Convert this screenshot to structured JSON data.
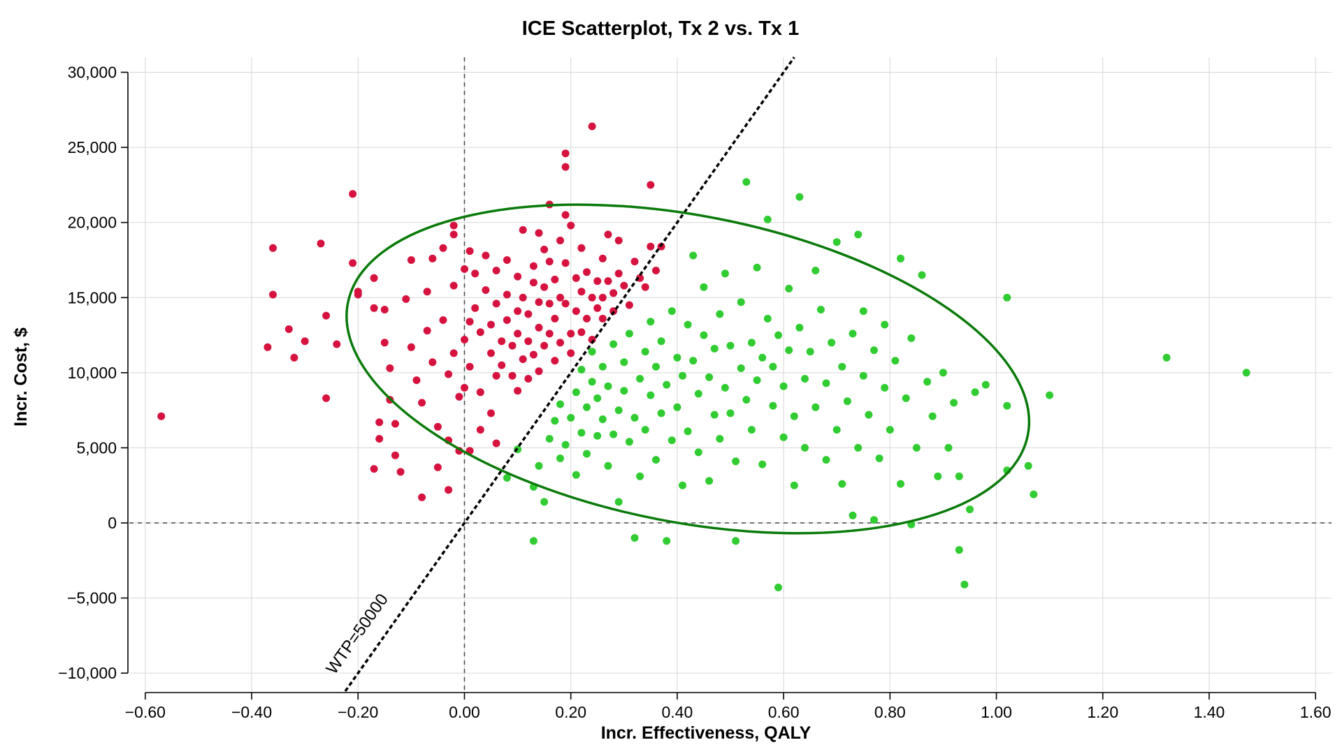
{
  "chart_data": {
    "type": "scatter",
    "title": "ICE Scatterplot, Tx 2 vs. Tx 1",
    "xlabel": "Incr. Effectiveness, QALY",
    "ylabel": "Incr. Cost, $",
    "xlim": [
      -0.63,
      1.63
    ],
    "ylim": [
      -11200,
      31000
    ],
    "x_ticks": [
      -0.6,
      -0.4,
      -0.2,
      0,
      0.2,
      0.4,
      0.6,
      0.8,
      1.0,
      1.2,
      1.4,
      1.6
    ],
    "x_tick_labels": [
      "−0.60",
      "−0.40",
      "−0.20",
      "0.00",
      "0.20",
      "0.40",
      "0.60",
      "0.80",
      "1.00",
      "1.20",
      "1.40",
      "1.60"
    ],
    "y_ticks": [
      -10000,
      -5000,
      0,
      5000,
      10000,
      15000,
      20000,
      25000,
      30000
    ],
    "y_tick_labels": [
      "−10,000",
      "−5,000",
      "0",
      "5,000",
      "10,000",
      "15,000",
      "20,000",
      "25,000",
      "30,000"
    ],
    "grid": true,
    "legend": "none",
    "colors": {
      "not_cost_effective": "#d6133f",
      "cost_effective": "#31cc31",
      "ellipse": "#0a7a0a"
    },
    "wtp": {
      "value": 50000,
      "label": "WTP=50000"
    },
    "ellipse": {
      "center": [
        0.42,
        10250
      ],
      "semi_axes": [
        0.651,
        10200
      ],
      "angle_deg": -11,
      "confidence": 0.95
    },
    "series": [
      {
        "values": [
          [
            -0.57,
            7100
          ],
          [
            -0.36,
            18300
          ],
          [
            -0.36,
            15200
          ],
          [
            -0.37,
            11700
          ],
          [
            -0.33,
            12900
          ],
          [
            -0.32,
            11000
          ],
          [
            -0.3,
            12100
          ],
          [
            -0.27,
            18600
          ],
          [
            -0.26,
            13800
          ],
          [
            -0.26,
            8300
          ],
          [
            -0.24,
            11900
          ],
          [
            -0.21,
            21900
          ],
          [
            -0.21,
            17300
          ],
          [
            -0.2,
            15400
          ],
          [
            -0.2,
            15200
          ],
          [
            -0.17,
            16300
          ],
          [
            -0.17,
            14300
          ],
          [
            -0.16,
            6700
          ],
          [
            -0.16,
            5600
          ],
          [
            -0.17,
            3600
          ],
          [
            -0.15,
            14200
          ],
          [
            -0.15,
            12000
          ],
          [
            -0.14,
            10300
          ],
          [
            -0.14,
            8200
          ],
          [
            -0.13,
            6600
          ],
          [
            -0.13,
            4500
          ],
          [
            -0.12,
            3400
          ],
          [
            -0.11,
            14900
          ],
          [
            -0.1,
            17500
          ],
          [
            -0.1,
            11700
          ],
          [
            -0.09,
            9500
          ],
          [
            -0.08,
            8000
          ],
          [
            -0.08,
            1700
          ],
          [
            -0.07,
            15400
          ],
          [
            -0.07,
            12800
          ],
          [
            -0.06,
            17600
          ],
          [
            -0.06,
            10700
          ],
          [
            -0.05,
            6400
          ],
          [
            -0.05,
            3700
          ],
          [
            -0.04,
            18300
          ],
          [
            -0.04,
            13500
          ],
          [
            -0.03,
            9900
          ],
          [
            -0.03,
            5500
          ],
          [
            -0.03,
            2200
          ],
          [
            -0.02,
            19200
          ],
          [
            -0.02,
            15800
          ],
          [
            -0.02,
            11300
          ],
          [
            -0.01,
            8400
          ],
          [
            -0.01,
            4800
          ],
          [
            -0.02,
            19800
          ],
          [
            0.0,
            16900
          ],
          [
            0.0,
            12200
          ],
          [
            0.0,
            9000
          ],
          [
            0.01,
            18100
          ],
          [
            0.01,
            13400
          ],
          [
            0.01,
            10400
          ],
          [
            0.01,
            4800
          ],
          [
            0.02,
            16600
          ],
          [
            0.02,
            14300
          ],
          [
            0.03,
            12700
          ],
          [
            0.03,
            8700
          ],
          [
            0.03,
            6200
          ],
          [
            0.04,
            17800
          ],
          [
            0.04,
            15500
          ],
          [
            0.05,
            13200
          ],
          [
            0.05,
            11300
          ],
          [
            0.05,
            7300
          ],
          [
            0.06,
            16800
          ],
          [
            0.06,
            14600
          ],
          [
            0.06,
            9800
          ],
          [
            0.06,
            5300
          ],
          [
            0.07,
            12100
          ],
          [
            0.07,
            10500
          ],
          [
            0.08,
            17500
          ],
          [
            0.08,
            15200
          ],
          [
            0.08,
            13500
          ],
          [
            0.09,
            11800
          ],
          [
            0.09,
            9800
          ],
          [
            0.1,
            16400
          ],
          [
            0.1,
            14100
          ],
          [
            0.1,
            12600
          ],
          [
            0.1,
            8800
          ],
          [
            0.11,
            19500
          ],
          [
            0.11,
            15000
          ],
          [
            0.11,
            10900
          ],
          [
            0.12,
            13900
          ],
          [
            0.12,
            12100
          ],
          [
            0.12,
            9600
          ],
          [
            0.13,
            17100
          ],
          [
            0.13,
            16000
          ],
          [
            0.13,
            11200
          ],
          [
            0.14,
            14700
          ],
          [
            0.14,
            13000
          ],
          [
            0.14,
            10100
          ],
          [
            0.15,
            18200
          ],
          [
            0.15,
            15700
          ],
          [
            0.15,
            11800
          ],
          [
            0.16,
            21200
          ],
          [
            0.16,
            17400
          ],
          [
            0.16,
            14600
          ],
          [
            0.16,
            12600
          ],
          [
            0.17,
            16200
          ],
          [
            0.17,
            13600
          ],
          [
            0.17,
            10800
          ],
          [
            0.18,
            18800
          ],
          [
            0.18,
            15000
          ],
          [
            0.18,
            12000
          ],
          [
            0.19,
            24600
          ],
          [
            0.19,
            20500
          ],
          [
            0.19,
            17300
          ],
          [
            0.19,
            14600
          ],
          [
            0.2,
            12600
          ],
          [
            0.2,
            11300
          ],
          [
            0.2,
            19800
          ],
          [
            0.21,
            16300
          ],
          [
            0.21,
            14100
          ],
          [
            0.22,
            18300
          ],
          [
            0.22,
            15400
          ],
          [
            0.22,
            12700
          ],
          [
            0.23,
            16700
          ],
          [
            0.23,
            13600
          ],
          [
            0.24,
            26400
          ],
          [
            0.24,
            15000
          ],
          [
            0.24,
            12200
          ],
          [
            0.25,
            16100
          ],
          [
            0.25,
            14300
          ],
          [
            0.26,
            17600
          ],
          [
            0.26,
            15000
          ],
          [
            0.26,
            13600
          ],
          [
            0.27,
            16100
          ],
          [
            0.27,
            19200
          ],
          [
            0.28,
            15300
          ],
          [
            0.28,
            14100
          ],
          [
            0.29,
            18800
          ],
          [
            0.29,
            16600
          ],
          [
            0.3,
            15800
          ],
          [
            0.31,
            14500
          ],
          [
            0.32,
            17400
          ],
          [
            0.33,
            16300
          ],
          [
            0.34,
            15700
          ],
          [
            0.35,
            18400
          ],
          [
            0.35,
            22500
          ],
          [
            0.36,
            16800
          ],
          [
            0.37,
            18400
          ],
          [
            0.19,
            23700
          ],
          [
            0.14,
            19300
          ]
        ],
        "color": "#d6133f"
      },
      {
        "values": [
          [
            0.08,
            3000
          ],
          [
            0.1,
            4900
          ],
          [
            0.13,
            2400
          ],
          [
            0.13,
            -1200
          ],
          [
            0.14,
            3800
          ],
          [
            0.15,
            1400
          ],
          [
            0.16,
            5600
          ],
          [
            0.17,
            6800
          ],
          [
            0.18,
            4300
          ],
          [
            0.18,
            7900
          ],
          [
            0.19,
            5200
          ],
          [
            0.2,
            7000
          ],
          [
            0.21,
            3200
          ],
          [
            0.21,
            8700
          ],
          [
            0.22,
            6000
          ],
          [
            0.22,
            10200
          ],
          [
            0.23,
            4600
          ],
          [
            0.23,
            7700
          ],
          [
            0.24,
            9400
          ],
          [
            0.24,
            11400
          ],
          [
            0.25,
            5800
          ],
          [
            0.25,
            8300
          ],
          [
            0.26,
            6900
          ],
          [
            0.26,
            10400
          ],
          [
            0.27,
            3800
          ],
          [
            0.27,
            9100
          ],
          [
            0.28,
            5900
          ],
          [
            0.28,
            11900
          ],
          [
            0.29,
            7500
          ],
          [
            0.29,
            1400
          ],
          [
            0.3,
            8800
          ],
          [
            0.3,
            10700
          ],
          [
            0.31,
            5400
          ],
          [
            0.31,
            12600
          ],
          [
            0.32,
            7000
          ],
          [
            0.32,
            -1000
          ],
          [
            0.33,
            9600
          ],
          [
            0.33,
            3100
          ],
          [
            0.34,
            11400
          ],
          [
            0.34,
            6200
          ],
          [
            0.35,
            8500
          ],
          [
            0.35,
            13400
          ],
          [
            0.36,
            10400
          ],
          [
            0.36,
            4200
          ],
          [
            0.37,
            7300
          ],
          [
            0.37,
            12100
          ],
          [
            0.38,
            9200
          ],
          [
            0.38,
            -1200
          ],
          [
            0.39,
            5500
          ],
          [
            0.39,
            14100
          ],
          [
            0.4,
            11000
          ],
          [
            0.4,
            7700
          ],
          [
            0.41,
            2500
          ],
          [
            0.41,
            9800
          ],
          [
            0.42,
            13200
          ],
          [
            0.42,
            6100
          ],
          [
            0.43,
            10800
          ],
          [
            0.43,
            17800
          ],
          [
            0.44,
            8600
          ],
          [
            0.44,
            4700
          ],
          [
            0.45,
            12500
          ],
          [
            0.45,
            15700
          ],
          [
            0.46,
            9700
          ],
          [
            0.46,
            2800
          ],
          [
            0.47,
            7200
          ],
          [
            0.47,
            11600
          ],
          [
            0.48,
            13900
          ],
          [
            0.48,
            5600
          ],
          [
            0.49,
            9000
          ],
          [
            0.49,
            16600
          ],
          [
            0.5,
            11800
          ],
          [
            0.5,
            7300
          ],
          [
            0.51,
            4100
          ],
          [
            0.51,
            -1200
          ],
          [
            0.52,
            10300
          ],
          [
            0.52,
            14700
          ],
          [
            0.53,
            8200
          ],
          [
            0.53,
            22700
          ],
          [
            0.54,
            12000
          ],
          [
            0.54,
            6200
          ],
          [
            0.55,
            9500
          ],
          [
            0.55,
            17000
          ],
          [
            0.56,
            11000
          ],
          [
            0.56,
            3900
          ],
          [
            0.57,
            13600
          ],
          [
            0.57,
            20200
          ],
          [
            0.58,
            7800
          ],
          [
            0.58,
            10400
          ],
          [
            0.59,
            -4300
          ],
          [
            0.59,
            12500
          ],
          [
            0.6,
            5700
          ],
          [
            0.6,
            9100
          ],
          [
            0.61,
            15600
          ],
          [
            0.61,
            11500
          ],
          [
            0.62,
            7100
          ],
          [
            0.62,
            2500
          ],
          [
            0.63,
            13000
          ],
          [
            0.63,
            21700
          ],
          [
            0.64,
            9600
          ],
          [
            0.64,
            5000
          ],
          [
            0.65,
            11400
          ],
          [
            0.66,
            7700
          ],
          [
            0.66,
            16800
          ],
          [
            0.67,
            14200
          ],
          [
            0.68,
            9300
          ],
          [
            0.68,
            4200
          ],
          [
            0.69,
            12000
          ],
          [
            0.7,
            6200
          ],
          [
            0.7,
            18700
          ],
          [
            0.71,
            10400
          ],
          [
            0.71,
            2600
          ],
          [
            0.72,
            8100
          ],
          [
            0.73,
            12600
          ],
          [
            0.73,
            500
          ],
          [
            0.74,
            19200
          ],
          [
            0.74,
            5000
          ],
          [
            0.75,
            9800
          ],
          [
            0.75,
            14100
          ],
          [
            0.76,
            7200
          ],
          [
            0.77,
            11500
          ],
          [
            0.77,
            200
          ],
          [
            0.78,
            4300
          ],
          [
            0.79,
            9000
          ],
          [
            0.79,
            13200
          ],
          [
            0.8,
            6200
          ],
          [
            0.81,
            10800
          ],
          [
            0.82,
            17600
          ],
          [
            0.82,
            2600
          ],
          [
            0.83,
            8300
          ],
          [
            0.84,
            -100
          ],
          [
            0.84,
            12300
          ],
          [
            0.85,
            5000
          ],
          [
            0.86,
            16500
          ],
          [
            0.87,
            9400
          ],
          [
            0.88,
            7100
          ],
          [
            0.89,
            3100
          ],
          [
            0.9,
            10000
          ],
          [
            0.91,
            5000
          ],
          [
            0.92,
            8000
          ],
          [
            0.93,
            -1800
          ],
          [
            0.93,
            3100
          ],
          [
            0.94,
            -4100
          ],
          [
            0.95,
            900
          ],
          [
            0.96,
            8700
          ],
          [
            0.98,
            9200
          ],
          [
            1.02,
            15000
          ],
          [
            1.02,
            7800
          ],
          [
            1.02,
            3500
          ],
          [
            1.06,
            3800
          ],
          [
            1.07,
            1900
          ],
          [
            1.1,
            8500
          ],
          [
            1.32,
            11000
          ],
          [
            1.47,
            10000
          ]
        ],
        "color": "#31cc31"
      }
    ]
  }
}
